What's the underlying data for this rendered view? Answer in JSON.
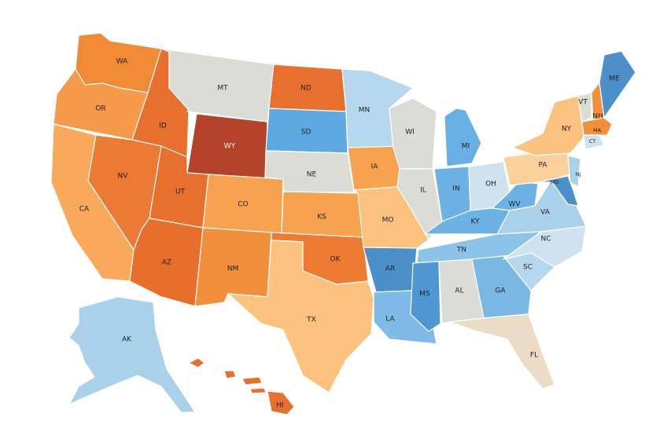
{
  "map": {
    "type": "choropleth",
    "region": "United States",
    "palette": {
      "dark_red": "#b5432c",
      "dark_orange": "#e8702f",
      "orange": "#f28f3b",
      "light_orange": "#f8b56a",
      "pale_orange": "#fbd09a",
      "beige": "#ebdcc6",
      "gray": "#dcdcd6",
      "very_light_blue": "#cfe2ef",
      "light_blue": "#a9d1ea",
      "medium_blue": "#68b0e3",
      "blue": "#4b90c8"
    },
    "states": [
      {
        "code": "WA",
        "fill": "#f08a35"
      },
      {
        "code": "OR",
        "fill": "#f59a48"
      },
      {
        "code": "CA",
        "fill": "#f8a95a"
      },
      {
        "code": "ID",
        "fill": "#e8702f"
      },
      {
        "code": "NV",
        "fill": "#ea7a34"
      },
      {
        "code": "MT",
        "fill": "#dcdcd6"
      },
      {
        "code": "WY",
        "fill": "#b5432c"
      },
      {
        "code": "UT",
        "fill": "#e8702f"
      },
      {
        "code": "AZ",
        "fill": "#e86e2c"
      },
      {
        "code": "CO",
        "fill": "#f6a24e"
      },
      {
        "code": "NM",
        "fill": "#f28f3b"
      },
      {
        "code": "ND",
        "fill": "#e8702f"
      },
      {
        "code": "SD",
        "fill": "#5ea9e0"
      },
      {
        "code": "NE",
        "fill": "#dcdcd6"
      },
      {
        "code": "KS",
        "fill": "#f6a24e"
      },
      {
        "code": "OK",
        "fill": "#ee7b32"
      },
      {
        "code": "TX",
        "fill": "#fbc27e"
      },
      {
        "code": "MN",
        "fill": "#b6d8ee"
      },
      {
        "code": "IA",
        "fill": "#f6a24e"
      },
      {
        "code": "MO",
        "fill": "#fbc27e"
      },
      {
        "code": "AR",
        "fill": "#4b90c8"
      },
      {
        "code": "LA",
        "fill": "#7fbbe6"
      },
      {
        "code": "WI",
        "fill": "#dcdcd6"
      },
      {
        "code": "IL",
        "fill": "#dcdcd6"
      },
      {
        "code": "MI",
        "fill": "#68b0e3"
      },
      {
        "code": "IN",
        "fill": "#6cb2e4"
      },
      {
        "code": "OH",
        "fill": "#cfe2ef"
      },
      {
        "code": "KY",
        "fill": "#6cb2e4"
      },
      {
        "code": "TN",
        "fill": "#8cc3e8"
      },
      {
        "code": "MS",
        "fill": "#4f97d2"
      },
      {
        "code": "AL",
        "fill": "#dcdcd6"
      },
      {
        "code": "GA",
        "fill": "#7ab8e4"
      },
      {
        "code": "FL",
        "fill": "#ebdcc6"
      },
      {
        "code": "SC",
        "fill": "#b6d8ee"
      },
      {
        "code": "NC",
        "fill": "#cfe2ef"
      },
      {
        "code": "VA",
        "fill": "#a9d1ea"
      },
      {
        "code": "WV",
        "fill": "#6cb2e4"
      },
      {
        "code": "PA",
        "fill": "#fbd09a"
      },
      {
        "code": "NY",
        "fill": "#fbc27e"
      },
      {
        "code": "VT",
        "fill": "#dcdcd6"
      },
      {
        "code": "NH",
        "fill": "#f28f3b"
      },
      {
        "code": "ME",
        "fill": "#4b90c8"
      },
      {
        "code": "MA",
        "fill": "#f28f3b"
      },
      {
        "code": "CT",
        "fill": "#cfe2ef"
      },
      {
        "code": "NJ",
        "fill": "#a9d1ea"
      },
      {
        "code": "MD",
        "fill": "#4b90c8"
      },
      {
        "code": "AK",
        "fill": "#a9d1ea"
      },
      {
        "code": "HI",
        "fill": "#e8702f"
      }
    ]
  }
}
